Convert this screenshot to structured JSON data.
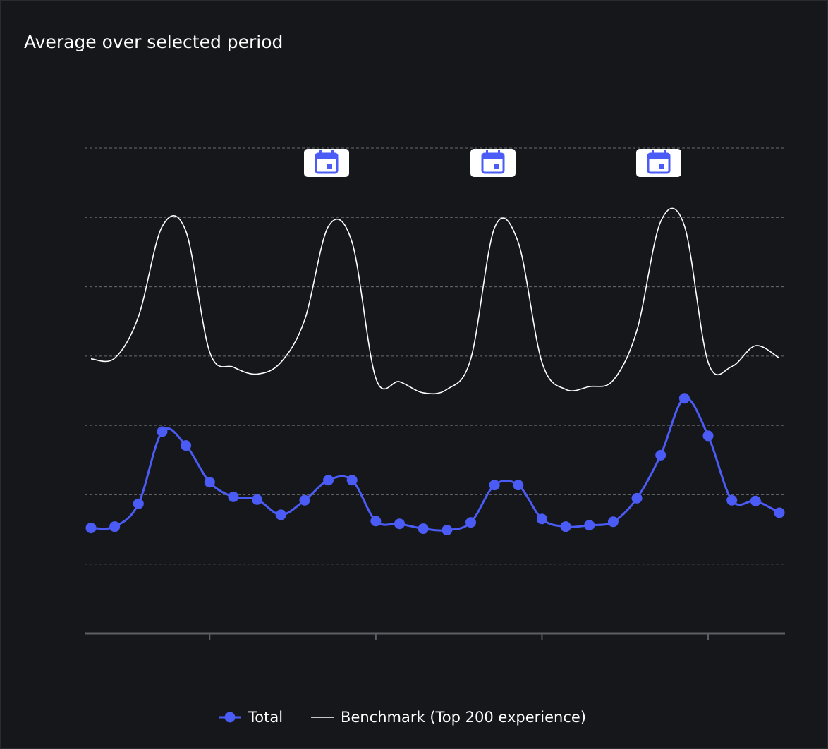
{
  "chart_data": {
    "type": "line",
    "title": "Average over selected period",
    "xlim": [
      0,
      29
    ],
    "xticks": [
      5,
      12,
      19,
      26
    ],
    "ylim": [
      0,
      7
    ],
    "yticks": [
      1,
      2,
      3,
      4,
      5,
      6,
      7
    ],
    "grid": true,
    "series": [
      {
        "name": "Total",
        "color": "#4a5cf5",
        "markers": true,
        "values": [
          1.52,
          1.54,
          1.87,
          2.91,
          2.71,
          2.18,
          1.97,
          1.93,
          1.71,
          1.92,
          2.21,
          2.21,
          1.62,
          1.58,
          1.51,
          1.49,
          1.6,
          2.14,
          2.14,
          1.65,
          1.54,
          1.56,
          1.61,
          1.95,
          2.57,
          3.39,
          2.85,
          1.92,
          1.91,
          1.74
        ]
      },
      {
        "name": "Benchmark (Top 200 experience)",
        "color": "#ffffff",
        "markers": false,
        "values": [
          3.96,
          3.97,
          4.57,
          5.87,
          5.8,
          4.06,
          3.84,
          3.74,
          3.91,
          4.52,
          5.87,
          5.64,
          3.68,
          3.63,
          3.47,
          3.52,
          3.96,
          5.85,
          5.64,
          3.91,
          3.52,
          3.56,
          3.65,
          4.37,
          5.94,
          5.88,
          3.91,
          3.85,
          4.15,
          3.97
        ]
      }
    ]
  }
}
